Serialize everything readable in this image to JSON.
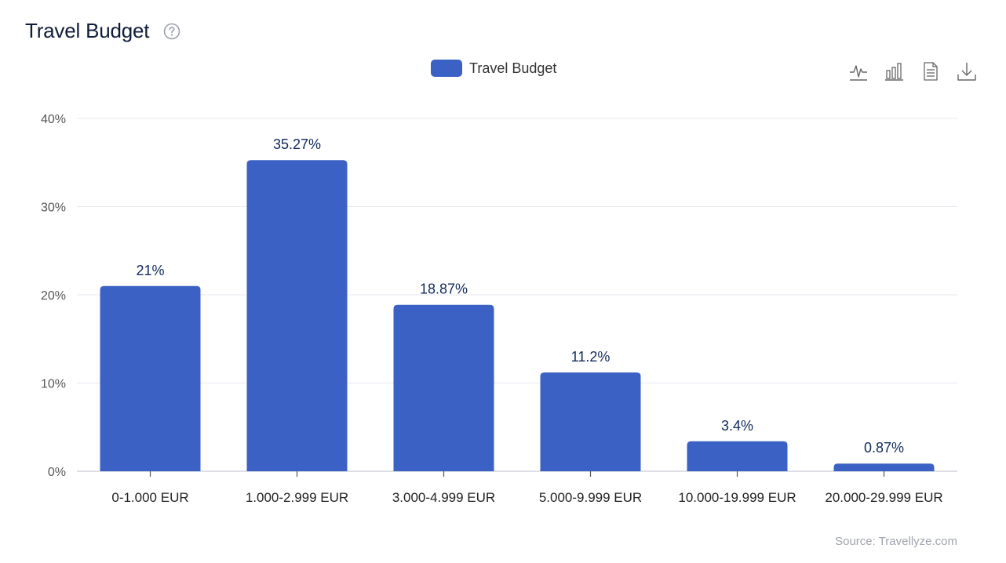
{
  "header": {
    "title": "Travel Budget",
    "help_icon": "question-circle-icon"
  },
  "toolbar": {
    "icons": [
      "line-chart-icon",
      "bar-chart-icon",
      "document-icon",
      "download-icon"
    ]
  },
  "source": "Source: Travellyze.com",
  "colors": {
    "bar": "#3b61c4",
    "grid": "#e6e9f2",
    "label": "#0f2a5a",
    "tick": "#555555"
  },
  "chart_data": {
    "type": "bar",
    "title": "Travel Budget",
    "legend": [
      "Travel Budget"
    ],
    "legend_position": "top-center",
    "categories": [
      "0-1.000 EUR",
      "1.000-2.999 EUR",
      "3.000-4.999 EUR",
      "5.000-9.999 EUR",
      "10.000-19.999 EUR",
      "20.000-29.999 EUR"
    ],
    "series": [
      {
        "name": "Travel Budget",
        "values": [
          21,
          35.27,
          18.87,
          11.2,
          3.4,
          0.87
        ],
        "labels": [
          "21%",
          "35.27%",
          "18.87%",
          "11.2%",
          "3.4%",
          "0.87%"
        ]
      }
    ],
    "ylim": [
      0,
      40
    ],
    "yticks": [
      "0%",
      "10%",
      "20%",
      "30%",
      "40%"
    ],
    "grid": true
  }
}
